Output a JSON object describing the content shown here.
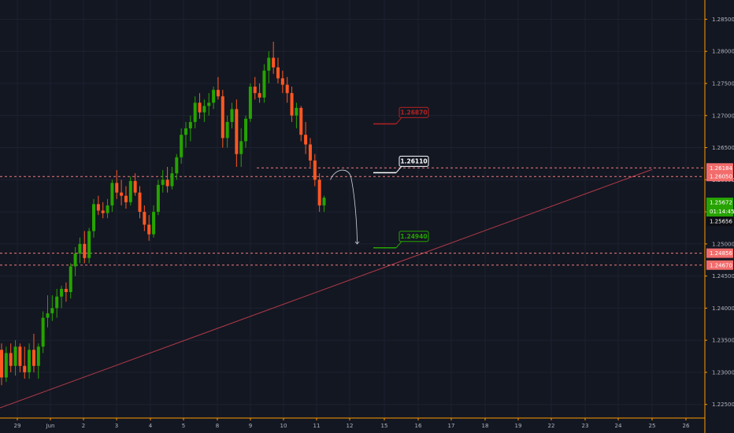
{
  "chart_data": {
    "type": "candlestick",
    "colors": {
      "background": "#131722",
      "up": "#26a300",
      "down": "#ff5722",
      "grid": "#1e2230",
      "axis_border": "#ff9800",
      "trendline": "#b23a48",
      "level_line": "#f27c7c",
      "price_tag": "#f26c6c",
      "current_tag": "#26a300",
      "red_box": "#b22222",
      "white_box": "#ffffff",
      "green_box": "#26a300"
    },
    "y_axis": {
      "min": 1.223,
      "max": 1.288,
      "ticks": [
        "1.22500",
        "1.23000",
        "1.23500",
        "1.24000",
        "1.24500",
        "1.25000",
        "1.25500",
        "1.26000",
        "1.26500",
        "1.27000",
        "1.27500",
        "1.28000",
        "1.28500"
      ]
    },
    "x_axis": {
      "ticks": [
        "29",
        "Jun",
        "2",
        "3",
        "4",
        "5",
        "8",
        "9",
        "10",
        "11",
        "12",
        "15",
        "16",
        "17",
        "18",
        "19",
        "22",
        "23",
        "24",
        "25",
        "26"
      ]
    },
    "candles": [
      [
        1.2335,
        1.2345,
        1.228,
        1.2292
      ],
      [
        1.2292,
        1.234,
        1.2285,
        1.233
      ],
      [
        1.233,
        1.2345,
        1.23,
        1.231
      ],
      [
        1.231,
        1.235,
        1.2295,
        1.234
      ],
      [
        1.234,
        1.2345,
        1.23,
        1.231
      ],
      [
        1.231,
        1.234,
        1.229,
        1.23
      ],
      [
        1.23,
        1.2345,
        1.229,
        1.2335
      ],
      [
        1.2335,
        1.236,
        1.23,
        1.231
      ],
      [
        1.231,
        1.2345,
        1.229,
        1.234
      ],
      [
        1.234,
        1.2395,
        1.233,
        1.2385
      ],
      [
        1.2385,
        1.242,
        1.237,
        1.2392
      ],
      [
        1.2392,
        1.242,
        1.238,
        1.24
      ],
      [
        1.24,
        1.243,
        1.2385,
        1.2418
      ],
      [
        1.2418,
        1.2435,
        1.24,
        1.243
      ],
      [
        1.243,
        1.244,
        1.241,
        1.2425
      ],
      [
        1.2425,
        1.247,
        1.2415,
        1.2465
      ],
      [
        1.2465,
        1.2495,
        1.245,
        1.2485
      ],
      [
        1.2485,
        1.251,
        1.247,
        1.25
      ],
      [
        1.25,
        1.252,
        1.247,
        1.2478
      ],
      [
        1.2478,
        1.2525,
        1.247,
        1.252
      ],
      [
        1.252,
        1.257,
        1.251,
        1.2562
      ],
      [
        1.2562,
        1.2575,
        1.2545,
        1.2552
      ],
      [
        1.2552,
        1.2565,
        1.254,
        1.2548
      ],
      [
        1.2548,
        1.257,
        1.254,
        1.256
      ],
      [
        1.256,
        1.26,
        1.255,
        1.2595
      ],
      [
        1.2595,
        1.2615,
        1.257,
        1.258
      ],
      [
        1.258,
        1.26,
        1.256,
        1.2575
      ],
      [
        1.2575,
        1.259,
        1.2555,
        1.2565
      ],
      [
        1.2565,
        1.2605,
        1.256,
        1.2598
      ],
      [
        1.2598,
        1.261,
        1.2575,
        1.258
      ],
      [
        1.258,
        1.259,
        1.254,
        1.255
      ],
      [
        1.255,
        1.256,
        1.252,
        1.253
      ],
      [
        1.253,
        1.2545,
        1.2505,
        1.2515
      ],
      [
        1.2515,
        1.256,
        1.251,
        1.255
      ],
      [
        1.255,
        1.26,
        1.2545,
        1.2592
      ],
      [
        1.2592,
        1.2615,
        1.258,
        1.26
      ],
      [
        1.26,
        1.262,
        1.258,
        1.259
      ],
      [
        1.259,
        1.262,
        1.2585,
        1.261
      ],
      [
        1.261,
        1.264,
        1.26,
        1.2635
      ],
      [
        1.2635,
        1.268,
        1.2625,
        1.267
      ],
      [
        1.267,
        1.269,
        1.265,
        1.268
      ],
      [
        1.268,
        1.27,
        1.266,
        1.269
      ],
      [
        1.269,
        1.273,
        1.268,
        1.272
      ],
      [
        1.272,
        1.2735,
        1.2695,
        1.2705
      ],
      [
        1.2705,
        1.2725,
        1.269,
        1.2715
      ],
      [
        1.2715,
        1.2735,
        1.27,
        1.272
      ],
      [
        1.272,
        1.2745,
        1.271,
        1.274
      ],
      [
        1.274,
        1.276,
        1.2725,
        1.273
      ],
      [
        1.273,
        1.274,
        1.265,
        1.2665
      ],
      [
        1.2665,
        1.27,
        1.265,
        1.269
      ],
      [
        1.269,
        1.272,
        1.268,
        1.271
      ],
      [
        1.271,
        1.2725,
        1.262,
        1.264
      ],
      [
        1.264,
        1.268,
        1.262,
        1.266
      ],
      [
        1.266,
        1.27,
        1.265,
        1.2695
      ],
      [
        1.2695,
        1.275,
        1.269,
        1.2745
      ],
      [
        1.2745,
        1.276,
        1.2725,
        1.2735
      ],
      [
        1.2735,
        1.275,
        1.272,
        1.2728
      ],
      [
        1.2728,
        1.278,
        1.272,
        1.277
      ],
      [
        1.277,
        1.28,
        1.275,
        1.279
      ],
      [
        1.279,
        1.2815,
        1.2765,
        1.2775
      ],
      [
        1.2775,
        1.279,
        1.275,
        1.2758
      ],
      [
        1.2758,
        1.277,
        1.2735,
        1.2748
      ],
      [
        1.2748,
        1.276,
        1.272,
        1.2735
      ],
      [
        1.2735,
        1.2745,
        1.269,
        1.27
      ],
      [
        1.27,
        1.272,
        1.268,
        1.2712
      ],
      [
        1.2712,
        1.2715,
        1.266,
        1.267
      ],
      [
        1.267,
        1.269,
        1.264,
        1.2655
      ],
      [
        1.2655,
        1.2665,
        1.262,
        1.263
      ],
      [
        1.263,
        1.264,
        1.259,
        1.26
      ],
      [
        1.26,
        1.261,
        1.255,
        1.256
      ],
      [
        1.256,
        1.2575,
        1.255,
        1.2572
      ]
    ],
    "trendline": {
      "from": [
        "28",
        1.2245
      ],
      "to": [
        "25",
        1.2616
      ]
    },
    "levels": [
      {
        "price": 1.26184,
        "label": "1.26184"
      },
      {
        "price": 1.2605,
        "label": "1.26050"
      },
      {
        "price": 1.24856,
        "label": "1.24856"
      },
      {
        "price": 1.2467,
        "label": "1.24670"
      }
    ],
    "price_tags": [
      {
        "price": 1.25672,
        "label": "1.25672",
        "kind": "current"
      },
      {
        "price": 1.25656,
        "label": "1.25656",
        "kind": "dark"
      }
    ],
    "countdown": "01:14:45",
    "annotations": [
      {
        "label": "1.26870",
        "price": 1.2687,
        "color": "red"
      },
      {
        "label": "1.26110",
        "price": 1.2611,
        "color": "white"
      },
      {
        "label": "1.24940",
        "price": 1.2494,
        "color": "green"
      }
    ]
  }
}
